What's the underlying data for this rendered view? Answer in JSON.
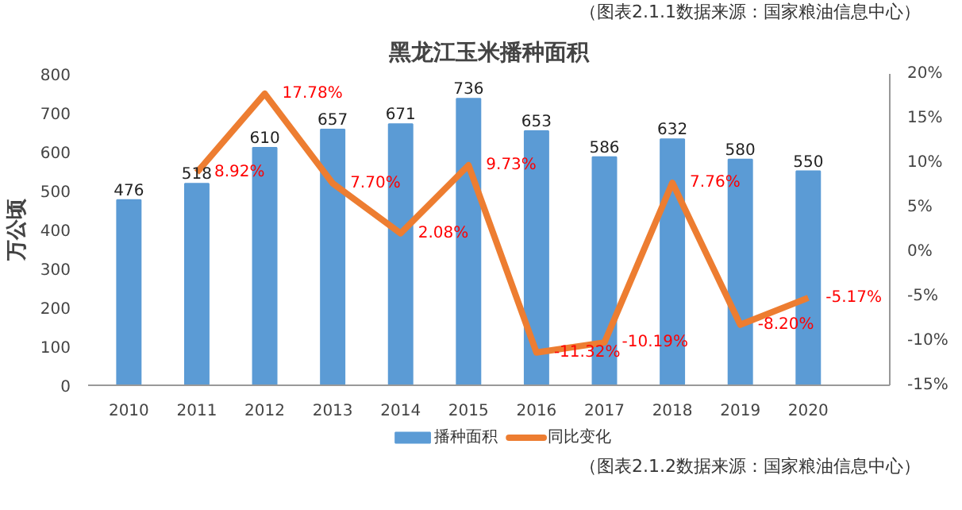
{
  "chart_data": {
    "type": "bar",
    "title": "黑龙江玉米播种面积",
    "ylabel": "万公顷",
    "annotations": [
      "（图表2.1.1数据来源：国家粮油信息中心）",
      "（图表2.1.2数据来源：国家粮油信息中心）"
    ],
    "categories": [
      "2010",
      "2011",
      "2012",
      "2013",
      "2014",
      "2015",
      "2016",
      "2017",
      "2018",
      "2019",
      "2020"
    ],
    "series": [
      {
        "name": "播种面积",
        "color": "#5b9bd5",
        "values": [
          476,
          518,
          610,
          657,
          671,
          736,
          653,
          586,
          632,
          580,
          550
        ]
      },
      {
        "name": "同比变化",
        "type": "line",
        "axis": "y2",
        "color": "#ed7d31",
        "values": [
          null,
          8.92,
          17.78,
          7.7,
          2.08,
          9.73,
          -11.32,
          -10.19,
          7.76,
          -8.2,
          -5.17
        ],
        "value_labels": [
          null,
          "8.92%",
          "17.78%",
          "7.70%",
          "2.08%",
          "9.73%",
          "-11.32%",
          "-10.19%",
          "7.76%",
          "-8.20%",
          "-5.17%"
        ]
      }
    ],
    "data_labels": true,
    "ylim": [
      0,
      800
    ],
    "yticks": [
      0,
      100,
      200,
      300,
      400,
      500,
      600,
      700,
      800
    ],
    "y2lim": [
      -15,
      20
    ],
    "y2ticks": [
      {
        "value": -15,
        "label": "-15%"
      },
      {
        "value": -10,
        "label": "-10%"
      },
      {
        "value": -5,
        "label": "-5%"
      },
      {
        "value": 0,
        "label": "0%"
      },
      {
        "value": 5,
        "label": "5%"
      },
      {
        "value": 10,
        "label": "10%"
      },
      {
        "value": 15,
        "label": "15%"
      },
      {
        "value": 20,
        "label": "20%"
      }
    ],
    "grid": false,
    "legend": "bottom",
    "marker": "none",
    "line_style": "solid"
  }
}
